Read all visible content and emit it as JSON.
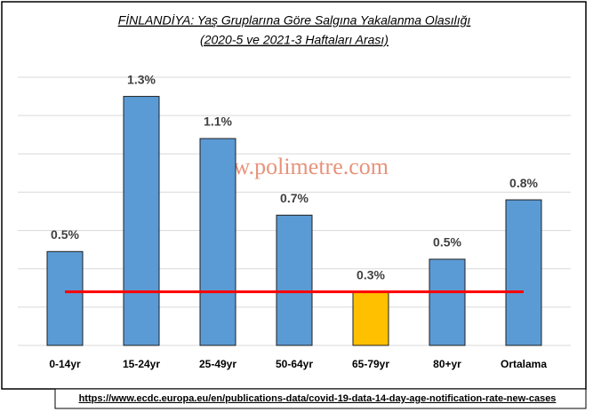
{
  "chart_data": {
    "type": "bar",
    "title": [
      "FİNLANDİYA: Yaş Gruplarına Göre Salgına Yakalanma Olasılığı",
      "(2020-5 ve 2021-3 Haftaları Arası)"
    ],
    "categories": [
      "0-14yr",
      "15-24yr",
      "25-49yr",
      "50-64yr",
      "65-79yr",
      "80+yr",
      "Ortalama"
    ],
    "values": [
      0.49,
      1.3,
      1.08,
      0.68,
      0.28,
      0.45,
      0.76
    ],
    "value_labels": [
      "0.5%",
      "1.3%",
      "1.1%",
      "0.7%",
      "0.3%",
      "0.5%",
      "0.8%"
    ],
    "colors": [
      "#5b9bd5",
      "#5b9bd5",
      "#5b9bd5",
      "#5b9bd5",
      "#ffc000",
      "#5b9bd5",
      "#5b9bd5"
    ],
    "reference_line": {
      "value": 0.28,
      "color": "#ff0000"
    },
    "ylim": [
      0,
      1.4
    ],
    "yticks": [
      0,
      0.2,
      0.4,
      0.6,
      0.8,
      1.0,
      1.2,
      1.4
    ],
    "grid": true,
    "watermark": "www.polimetre.com",
    "source": "https://www.ecdc.europa.eu/en/publications-data/covid-19-data-14-day-age-notification-rate-new-cases"
  }
}
